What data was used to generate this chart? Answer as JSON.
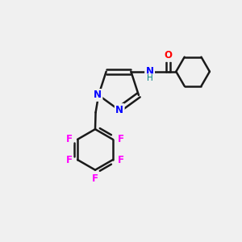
{
  "background_color": "#f0f0f0",
  "bond_color": "#1a1a1a",
  "atom_colors": {
    "N": "#0000ff",
    "O": "#ff0000",
    "F": "#ff00ff",
    "C": "#1a1a1a",
    "H": "#008080",
    "NH": "#008080"
  },
  "figsize": [
    3.0,
    3.0
  ],
  "dpi": 100
}
